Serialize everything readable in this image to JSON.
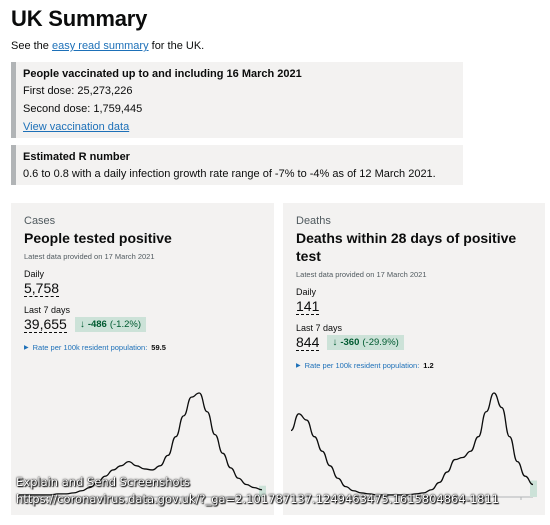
{
  "page": {
    "title": "UK Summary",
    "intro_prefix": "See the ",
    "intro_link": "easy read summary",
    "intro_suffix": " for the UK."
  },
  "vaccination": {
    "title": "People vaccinated up to and including 16 March 2021",
    "first_dose": "First dose: 25,273,226",
    "second_dose": "Second dose: 1,759,445",
    "link": "View vaccination data"
  },
  "r_number": {
    "title": "Estimated R number",
    "text": "0.6 to 0.8 with a daily infection growth rate range of -7% to -4% as of 12 March 2021."
  },
  "cases": {
    "category": "Cases",
    "title": "People tested positive",
    "meta": "Latest data provided on 17 March 2021",
    "daily_label": "Daily",
    "daily_value": "5,758",
    "week_label": "Last 7 days",
    "week_value": "39,655",
    "change_value": "-486",
    "change_pct": "(-1.2%)",
    "rate_label": "Rate per 100k resident population:",
    "rate_value": "59.5",
    "chart_series": [
      2,
      2,
      2,
      2,
      2,
      3,
      3,
      4,
      6,
      9,
      14,
      20,
      26,
      30,
      34,
      30,
      27,
      26,
      30,
      40,
      58,
      78,
      96,
      100,
      82,
      60,
      42,
      28,
      18,
      12,
      9,
      7
    ]
  },
  "deaths": {
    "category": "Deaths",
    "title": "Deaths within 28 days of positive test",
    "meta": "Latest data provided on 17 March 2021",
    "daily_label": "Daily",
    "daily_value": "141",
    "week_label": "Last 7 days",
    "week_value": "844",
    "change_value": "-360",
    "change_pct": "(-29.9%)",
    "rate_label": "Rate per 100k resident population:",
    "rate_value": "1.2",
    "chart_series": [
      64,
      80,
      74,
      58,
      44,
      30,
      18,
      10,
      6,
      4,
      3,
      2,
      2,
      2,
      2,
      2,
      3,
      4,
      7,
      14,
      24,
      36,
      38,
      44,
      58,
      82,
      100,
      86,
      58,
      34,
      20,
      12
    ]
  },
  "overlay": {
    "line1": "Explain and Send Screenshots",
    "line2": "https://coronavirus.data.gov.uk/?_ga=2.101787137.1249463475.1615804864-1811"
  },
  "colors": {
    "link": "#1d70b8",
    "positive_change_bg": "#cce2d8",
    "positive_change_text": "#005a30",
    "chart_line": "#0b0c0c",
    "chart_tail": "#cce2d8",
    "panel_bg": "#f3f2f1"
  }
}
